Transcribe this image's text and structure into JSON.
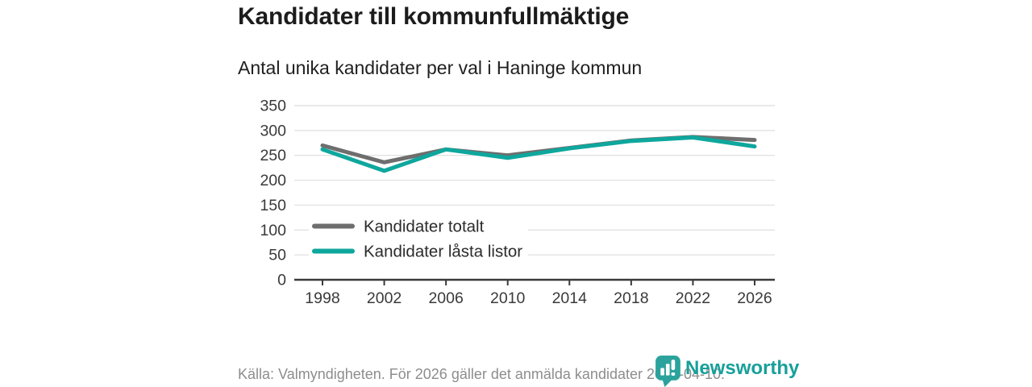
{
  "header": {
    "title": "Kandidater till kommunfullmäktige",
    "subtitle": "Antal unika kandidater per val i Haninge kommun"
  },
  "chart_data": {
    "type": "line",
    "x": [
      "1998",
      "2002",
      "2006",
      "2010",
      "2014",
      "2018",
      "2022",
      "2026"
    ],
    "series": [
      {
        "name": "Kandidater totalt",
        "color": "#6e6e6e",
        "values": [
          270,
          236,
          262,
          250,
          265,
          280,
          287,
          281
        ]
      },
      {
        "name": "Kandidater låsta listor",
        "color": "#0ea79d",
        "values": [
          262,
          219,
          262,
          245,
          264,
          279,
          286,
          268
        ]
      }
    ],
    "ylim": [
      0,
      350
    ],
    "yticks": [
      0,
      50,
      100,
      150,
      200,
      250,
      300,
      350
    ],
    "grid": true,
    "legend_position": "inside-bottom-left",
    "axis_color": "#3a3a3a",
    "grid_color": "#e2e2e2",
    "tick_label_color": "#3a3a3a",
    "legend_text_color": "#2b2b2b"
  },
  "footer": {
    "source": "Källa: Valmyndigheten. För 2026 gäller det anmälda kandidater 2026-04-10."
  },
  "brand": {
    "name": "Newsworthy",
    "color": "#17a09a",
    "icon": "newsworthy-barchart-pin-icon"
  }
}
